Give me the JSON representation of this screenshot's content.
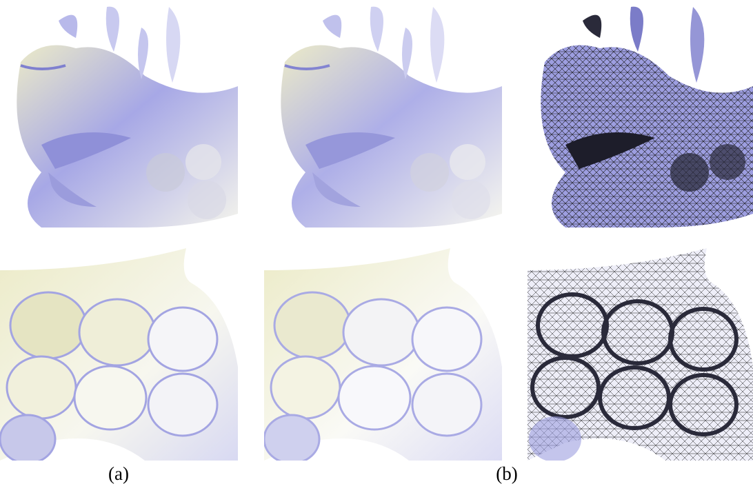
{
  "figure": {
    "captions": [
      "(a)",
      "(b)"
    ],
    "colors": {
      "surface_light": "#f7f7ef",
      "surface_cream": "#ecebc8",
      "surface_blue": "#a7a8e6",
      "surface_deep": "#7f80cf",
      "wire": "#1a1a1a",
      "background": "#ffffff"
    }
  }
}
